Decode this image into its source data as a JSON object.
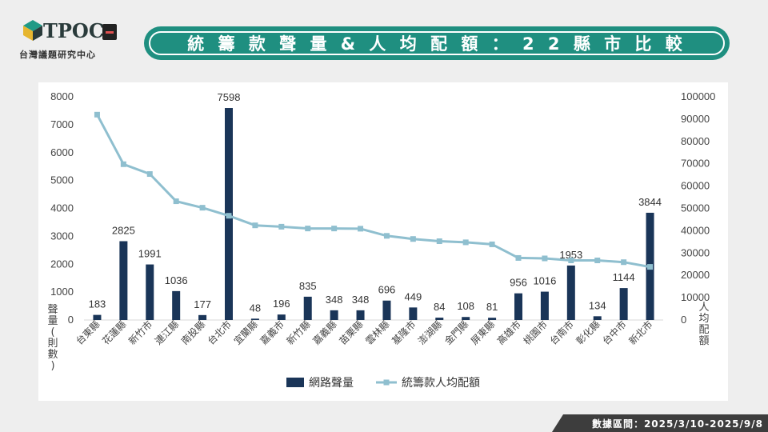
{
  "logo": {
    "text": "TPOC",
    "subtitle": "台灣議題研究中心"
  },
  "header": {
    "title": "統 籌 款 聲 量 & 人 均 配 額 ： 2 2 縣 市 比 較"
  },
  "footer": {
    "date_range": "數據區間：2025/3/10-2025/9/8"
  },
  "colors": {
    "bar": "#1a3558",
    "line": "#8fbfcf",
    "banner": "#1f8f80"
  },
  "chart_data": {
    "type": "bar",
    "categories": [
      "台東縣",
      "花蓮縣",
      "新竹市",
      "連江縣",
      "南投縣",
      "台北市",
      "宜蘭縣",
      "嘉義市",
      "新竹縣",
      "嘉義縣",
      "苗栗縣",
      "雲林縣",
      "基隆市",
      "澎湖縣",
      "金門縣",
      "屏東縣",
      "高雄市",
      "桃園市",
      "台南市",
      "彰化縣",
      "台中市",
      "新北市"
    ],
    "series": [
      {
        "name": "網路聲量",
        "type": "bar",
        "axis": "left",
        "values": [
          183,
          2825,
          1991,
          1036,
          177,
          7598,
          48,
          196,
          835,
          348,
          348,
          696,
          449,
          84,
          108,
          81,
          956,
          1016,
          1953,
          134,
          1144,
          3844
        ]
      },
      {
        "name": "統籌款人均配額",
        "type": "line",
        "axis": "right",
        "values": [
          92000,
          69800,
          65400,
          53200,
          50300,
          46700,
          42400,
          41800,
          41000,
          41000,
          40900,
          37700,
          36300,
          35300,
          34800,
          33900,
          27800,
          27600,
          26700,
          26700,
          25900,
          23800
        ]
      }
    ],
    "y_left": {
      "label": "聲量(則數)",
      "ticks": [
        "0",
        "1000",
        "2000",
        "3000",
        "4000",
        "5000",
        "6000",
        "7000",
        "8000"
      ],
      "range": [
        0,
        8000
      ]
    },
    "y_right": {
      "label": "人均配額",
      "ticks": [
        "0",
        "10000",
        "20000",
        "30000",
        "40000",
        "50000",
        "60000",
        "70000",
        "80000",
        "90000",
        "100000"
      ],
      "range": [
        0,
        100000
      ]
    },
    "legend_position": "bottom",
    "grid": false
  }
}
